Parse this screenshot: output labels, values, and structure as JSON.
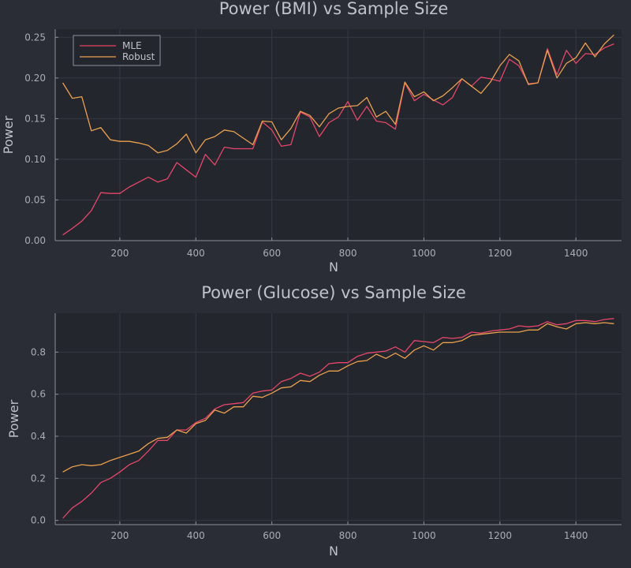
{
  "colors": {
    "background": "#2a2d35",
    "plot_background": "#24262d",
    "grid": "#353944",
    "axis": "#8c9099",
    "mle": "#e5466a",
    "robust": "#e9a04e"
  },
  "chart_data": [
    {
      "type": "line",
      "title": "Power (BMI) vs Sample Size",
      "xlabel": "N",
      "ylabel": "Power",
      "xlim": [
        30,
        1520
      ],
      "ylim": [
        0,
        0.26
      ],
      "xticks": [
        200,
        400,
        600,
        800,
        1000,
        1200,
        1400
      ],
      "xtick_labels": [
        "200",
        "400",
        "600",
        "800",
        "1000",
        "1200",
        "1400"
      ],
      "yticks": [
        0,
        0.05,
        0.1,
        0.15,
        0.2,
        0.25
      ],
      "ytick_labels": [
        "0.00",
        "0.05",
        "0.10",
        "0.15",
        "0.20",
        "0.25"
      ],
      "grid": true,
      "legend": {
        "position": "top-left",
        "entries": [
          "MLE",
          "Robust"
        ]
      },
      "x": [
        50,
        75,
        100,
        125,
        150,
        175,
        200,
        225,
        250,
        275,
        300,
        325,
        350,
        375,
        400,
        425,
        450,
        475,
        500,
        525,
        550,
        575,
        600,
        625,
        650,
        675,
        700,
        725,
        750,
        775,
        800,
        825,
        850,
        875,
        900,
        925,
        950,
        975,
        1000,
        1025,
        1050,
        1075,
        1100,
        1125,
        1150,
        1175,
        1200,
        1225,
        1250,
        1275,
        1300,
        1325,
        1350,
        1375,
        1400,
        1425,
        1450,
        1475,
        1500
      ],
      "series": [
        {
          "name": "MLE",
          "color": "#e5466a",
          "values": [
            0.007,
            0.015,
            0.024,
            0.037,
            0.059,
            0.058,
            0.058,
            0.066,
            0.072,
            0.078,
            0.072,
            0.076,
            0.096,
            0.087,
            0.078,
            0.106,
            0.093,
            0.115,
            0.113,
            0.113,
            0.113,
            0.146,
            0.136,
            0.116,
            0.118,
            0.158,
            0.152,
            0.128,
            0.145,
            0.152,
            0.171,
            0.148,
            0.165,
            0.147,
            0.145,
            0.137,
            0.194,
            0.172,
            0.18,
            0.173,
            0.167,
            0.176,
            0.199,
            0.19,
            0.201,
            0.199,
            0.196,
            0.223,
            0.215,
            0.193,
            0.194,
            0.236,
            0.204,
            0.234,
            0.218,
            0.23,
            0.229,
            0.237,
            0.242
          ]
        },
        {
          "name": "Robust",
          "color": "#e9a04e",
          "values": [
            0.194,
            0.175,
            0.177,
            0.135,
            0.139,
            0.124,
            0.122,
            0.122,
            0.12,
            0.117,
            0.108,
            0.111,
            0.119,
            0.131,
            0.108,
            0.124,
            0.128,
            0.136,
            0.134,
            0.126,
            0.118,
            0.147,
            0.146,
            0.124,
            0.138,
            0.159,
            0.154,
            0.14,
            0.156,
            0.163,
            0.165,
            0.166,
            0.176,
            0.152,
            0.159,
            0.143,
            0.195,
            0.177,
            0.183,
            0.172,
            0.178,
            0.188,
            0.199,
            0.19,
            0.181,
            0.195,
            0.215,
            0.229,
            0.221,
            0.192,
            0.194,
            0.234,
            0.2,
            0.218,
            0.225,
            0.243,
            0.226,
            0.242,
            0.253
          ]
        }
      ]
    },
    {
      "type": "line",
      "title": "Power (Glucose) vs Sample Size",
      "xlabel": "N",
      "ylabel": "Power",
      "xlim": [
        30,
        1520
      ],
      "ylim": [
        -0.02,
        0.985
      ],
      "xticks": [
        200,
        400,
        600,
        800,
        1000,
        1200,
        1400
      ],
      "xtick_labels": [
        "200",
        "400",
        "600",
        "800",
        "1000",
        "1200",
        "1400"
      ],
      "yticks": [
        0,
        0.2,
        0.4,
        0.6,
        0.8
      ],
      "ytick_labels": [
        "0.0",
        "0.2",
        "0.4",
        "0.6",
        "0.8"
      ],
      "grid": true,
      "x": [
        50,
        75,
        100,
        125,
        150,
        175,
        200,
        225,
        250,
        275,
        300,
        325,
        350,
        375,
        400,
        425,
        450,
        475,
        500,
        525,
        550,
        575,
        600,
        625,
        650,
        675,
        700,
        725,
        750,
        775,
        800,
        825,
        850,
        875,
        900,
        925,
        950,
        975,
        1000,
        1025,
        1050,
        1075,
        1100,
        1125,
        1150,
        1175,
        1200,
        1225,
        1250,
        1275,
        1300,
        1325,
        1350,
        1375,
        1400,
        1425,
        1450,
        1475,
        1500
      ],
      "series": [
        {
          "name": "MLE",
          "color": "#e5466a",
          "values": [
            0.01,
            0.06,
            0.09,
            0.13,
            0.18,
            0.2,
            0.23,
            0.265,
            0.285,
            0.33,
            0.38,
            0.38,
            0.43,
            0.43,
            0.465,
            0.485,
            0.53,
            0.55,
            0.555,
            0.56,
            0.605,
            0.615,
            0.62,
            0.66,
            0.675,
            0.7,
            0.685,
            0.705,
            0.745,
            0.75,
            0.75,
            0.78,
            0.795,
            0.8,
            0.805,
            0.825,
            0.8,
            0.855,
            0.85,
            0.845,
            0.87,
            0.865,
            0.87,
            0.895,
            0.89,
            0.9,
            0.905,
            0.91,
            0.925,
            0.92,
            0.925,
            0.945,
            0.93,
            0.935,
            0.95,
            0.95,
            0.945,
            0.955,
            0.96
          ]
        },
        {
          "name": "Robust",
          "color": "#e9a04e",
          "values": [
            0.23,
            0.255,
            0.265,
            0.26,
            0.265,
            0.285,
            0.3,
            0.315,
            0.33,
            0.365,
            0.39,
            0.395,
            0.43,
            0.415,
            0.46,
            0.475,
            0.525,
            0.51,
            0.54,
            0.54,
            0.59,
            0.585,
            0.605,
            0.63,
            0.635,
            0.665,
            0.66,
            0.69,
            0.71,
            0.71,
            0.735,
            0.755,
            0.76,
            0.79,
            0.77,
            0.795,
            0.77,
            0.81,
            0.83,
            0.81,
            0.845,
            0.845,
            0.855,
            0.88,
            0.885,
            0.89,
            0.895,
            0.895,
            0.895,
            0.905,
            0.905,
            0.935,
            0.92,
            0.91,
            0.935,
            0.94,
            0.935,
            0.94,
            0.935
          ]
        }
      ]
    }
  ]
}
